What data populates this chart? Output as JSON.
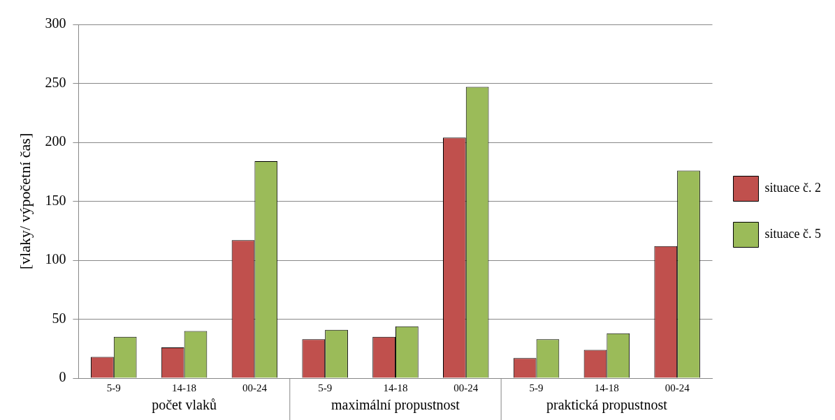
{
  "chart_data": {
    "type": "bar",
    "ylabel": "[vlaky/ výpočetní čas]",
    "categories": [
      "5-9",
      "14-18",
      "00-24",
      "5-9",
      "14-18",
      "00-24",
      "5-9",
      "14-18",
      "00-24"
    ],
    "series": [
      {
        "name": "situace č. 2",
        "color": "#c0504d",
        "values": [
          18,
          26,
          117,
          33,
          35,
          204,
          17,
          24,
          112
        ]
      },
      {
        "name": "situace č. 5",
        "color": "#9bbb59",
        "values": [
          35,
          40,
          184,
          41,
          44,
          247,
          33,
          38,
          176
        ]
      }
    ],
    "annotations": [
      "počet vlaků",
      "maximální propustnost",
      "praktická propustnost"
    ],
    "ylim": [
      0,
      300
    ],
    "yticks": [
      0,
      50,
      100,
      150,
      200,
      250,
      300
    ],
    "grid": "y",
    "legend": "right"
  }
}
